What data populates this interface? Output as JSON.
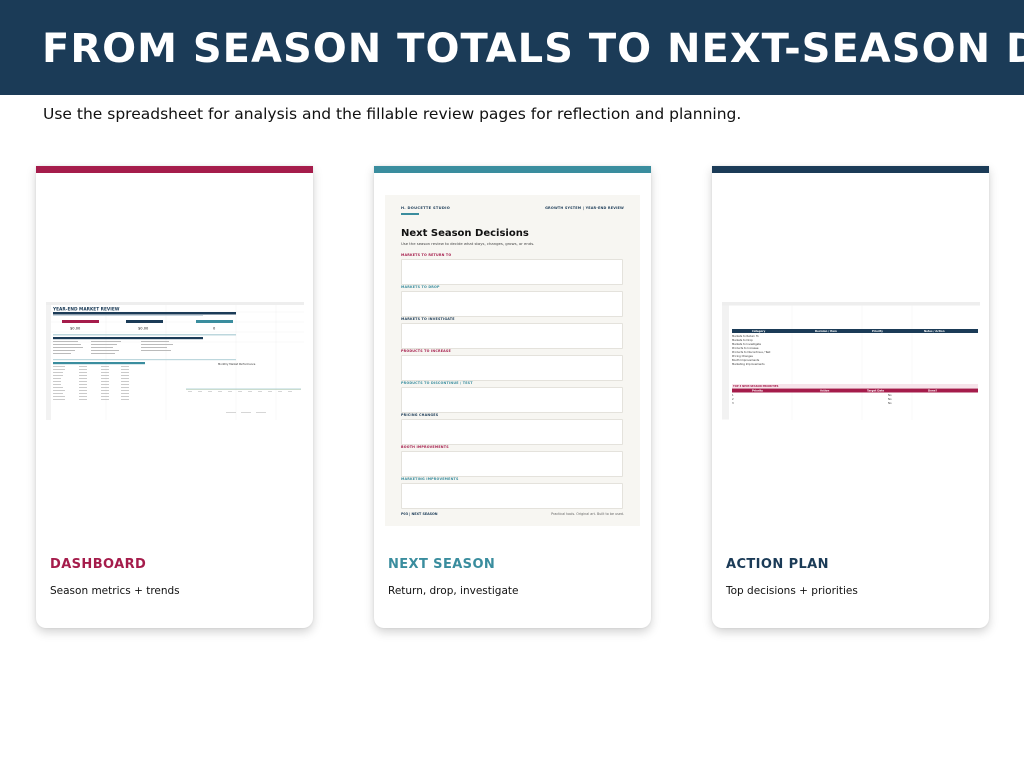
{
  "header": {
    "title": "FROM SEASON TOTALS TO NEXT-SEASON DECISIONS"
  },
  "subtitle": "Use the spreadsheet for analysis and the fillable review pages for reflection and planning.",
  "colors": {
    "header_bg": "#1b3b57",
    "dashboard_accent": "#a51c4b",
    "next_season_accent": "#3a8d9e",
    "action_plan_accent": "#1b3b57"
  },
  "cards": [
    {
      "title": "DASHBOARD",
      "description": "Season metrics + trends",
      "accent": "#a51c4b",
      "preview": {
        "sheet_title": "YEAR-END MARKET REVIEW",
        "kpi_values": [
          "$0.00",
          "$0.00",
          "0"
        ],
        "chart_title": "Monthly Market Performance"
      }
    },
    {
      "title": "NEXT SEASON",
      "description": "Return, drop, investigate",
      "accent": "#3a8d9e",
      "preview": {
        "studio": "H. DOUCETTE STUDIO",
        "system": "GROWTH SYSTEM | YEAR-END REVIEW",
        "page_title": "Next Season Decisions",
        "page_subtitle": "Use the season review to decide what stays, changes, grows, or ends.",
        "sections": [
          {
            "label": "MARKETS TO RETURN TO",
            "color": "#a51c4b"
          },
          {
            "label": "MARKETS TO DROP",
            "color": "#3a8d9e"
          },
          {
            "label": "MARKETS TO INVESTIGATE",
            "color": "#1b3b57"
          },
          {
            "label": "PRODUCTS TO INCREASE",
            "color": "#a51c4b"
          },
          {
            "label": "PRODUCTS TO DISCONTINUE / TEST",
            "color": "#3a8d9e"
          },
          {
            "label": "PRICING CHANGES",
            "color": "#1b3b57"
          },
          {
            "label": "BOOTH IMPROVEMENTS",
            "color": "#a51c4b"
          },
          {
            "label": "MARKETING IMPROVEMENTS",
            "color": "#3a8d9e"
          }
        ],
        "footer_left": "P03 | NEXT SEASON",
        "footer_right": "Practical tools. Original art. Built to be used."
      }
    },
    {
      "title": "ACTION PLAN",
      "description": "Top decisions + priorities",
      "accent": "#1b3b57",
      "preview": {
        "columns_top": [
          "Category",
          "Decision / Item",
          "Priority",
          "Notes / Action"
        ],
        "categories": [
          "Markets to Return To",
          "Markets to Drop",
          "Markets to Investigate",
          "Products to Increase",
          "Products to Discontinue / Test",
          "Pricing Changes",
          "Booth Improvements",
          "Marketing Improvements"
        ],
        "priorities_heading": "TOP 3 NEXT-SEASON PRIORITIES",
        "columns_bottom": [
          "Priority",
          "Action",
          "Target Date",
          "Done?"
        ],
        "done_values": [
          "No",
          "No",
          "No"
        ]
      }
    }
  ]
}
